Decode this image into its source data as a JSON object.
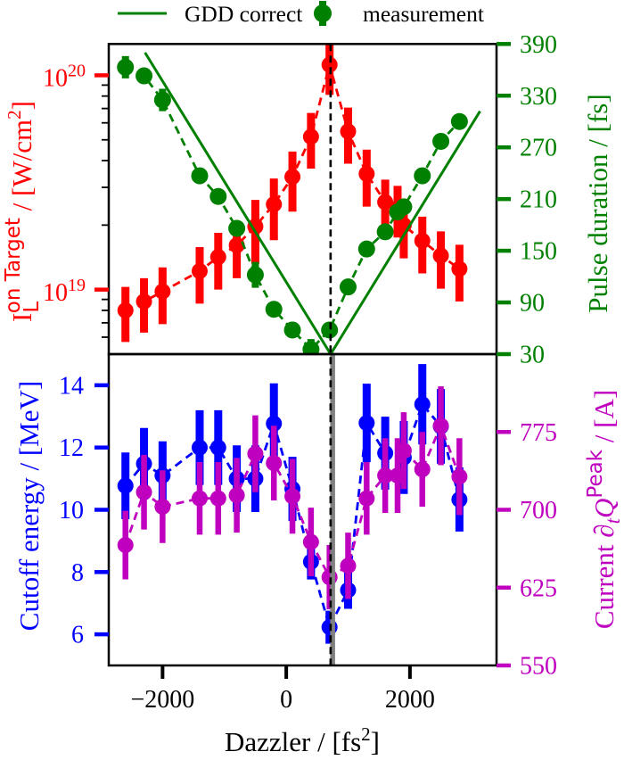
{
  "chart_data": {
    "type": "scatter",
    "title": "",
    "grid": false,
    "xlabel": {
      "text": "Dazzler / [fs",
      "sup": "2",
      "end": "]"
    },
    "xlim": [
      -2870,
      3400
    ],
    "xticks": [
      -2000,
      0,
      2000
    ],
    "xtick_labels": [
      "−2000",
      "0",
      "2000"
    ],
    "legend": {
      "placement": "top-center (above plot, no frame)",
      "entries": [
        {
          "label": "GDD correct",
          "marker": "solid-line",
          "color": "#008000"
        },
        {
          "label": "measurement",
          "marker": "errorbar-circle",
          "color": "#008000"
        }
      ]
    },
    "reference_lines": [
      {
        "orientation": "vertical",
        "x": 750,
        "style": "solid",
        "color": "#808080",
        "panels": [
          "bottom"
        ]
      },
      {
        "orientation": "vertical",
        "x": 717,
        "style": "dashed",
        "color": "#000000",
        "panels": [
          "top",
          "bottom"
        ]
      }
    ],
    "panels": [
      {
        "name": "top",
        "left_axis": {
          "label": {
            "symbol": "I",
            "subscript": "L",
            "superscript": "on Target",
            "unit": " / [W/cm",
            "unit_sup": "2",
            "unit_end": "]"
          },
          "scale": "log",
          "ylim": [
            5e+18,
            1.4e+20
          ],
          "ticks": [
            1e+19,
            1e+20
          ],
          "tick_labels": [
            {
              "base": "10",
              "exp": "19"
            },
            {
              "base": "10",
              "exp": "20"
            }
          ],
          "minor_ticks": [
            6e+18,
            7e+18,
            8e+18,
            9e+18,
            2e+19,
            3e+19,
            4e+19,
            5e+19,
            6e+19,
            7e+19,
            8e+19,
            9e+19
          ],
          "color": "#ff0000",
          "minor_tick_color": "#000000"
        },
        "right_axis": {
          "label": {
            "text": "Pulse duration / [fs]"
          },
          "scale": "linear",
          "ylim": [
            30,
            390
          ],
          "ticks": [
            30,
            90,
            150,
            210,
            270,
            330,
            390
          ],
          "tick_labels": [
            "30",
            "90",
            "150",
            "210",
            "270",
            "330",
            "390"
          ],
          "color": "#008000"
        },
        "series": [
          {
            "id": "intensity",
            "name": "Laser intensity on target",
            "axis": "left",
            "kind": "errorbar",
            "line": "dashed",
            "color": "#ff0000",
            "x": [
              -2600,
              -2300,
              -2000,
              -1400,
              -1100,
              -800,
              -500,
              -200,
              100,
              400,
              700,
              1000,
              1300,
              1600,
              1800,
              1900,
              2200,
              2500,
              2800
            ],
            "y": [
              8e+18,
              8.8e+18,
              9.8e+18,
              1.22e+19,
              1.42e+19,
              1.61e+19,
              1.97e+19,
              2.5e+19,
              3.36e+19,
              5.17e+19,
              1.12e+20,
              5.47e+19,
              3.47e+19,
              2.56e+19,
              2.4e+19,
              2e+19,
              1.69e+19,
              1.44e+19,
              1.25e+19
            ],
            "yerr": [
              2.3e+18,
              2.5e+18,
              2.9e+18,
              3.6e+18,
              4.2e+18,
              4.8e+18,
              6.5e+18,
              8e+18,
              1.05e+19,
              1.5e+19,
              3.1e+19,
              1.6e+19,
              1.03e+19,
              7e+18,
              6.5e+18,
              6e+18,
              5e+18,
              4.3e+18,
              3.7e+18
            ]
          },
          {
            "id": "gdd-correct",
            "name": "GDD correct",
            "axis": "right",
            "kind": "line",
            "line": "solid",
            "color": "#008000",
            "x": [
              -2283,
              717,
              3133
            ],
            "y": [
              380,
              30,
              312
            ]
          },
          {
            "id": "pulse-duration",
            "name": "measurement",
            "axis": "right",
            "kind": "errorbar",
            "line": "dashed",
            "color": "#008000",
            "x": [
              -2600,
              -2300,
              -2000,
              -1400,
              -1100,
              -800,
              -500,
              -200,
              100,
              400,
              700,
              1000,
              1300,
              1600,
              1800,
              1900,
              2200,
              2500,
              2800
            ],
            "y": [
              363,
              353,
              325,
              237,
              213,
              176,
              122,
              82,
              58,
              35.5,
              58,
              108,
              152,
              172,
              195,
              201,
              237,
              277,
              300
            ],
            "yerr": [
              13,
              5,
              13,
              5,
              5,
              5,
              15,
              5,
              5,
              12,
              5,
              5,
              5,
              5,
              5,
              5,
              5,
              5,
              5
            ]
          }
        ]
      },
      {
        "name": "bottom",
        "left_axis": {
          "label": {
            "text": "Cutoff energy / [MeV]"
          },
          "scale": "linear",
          "ylim": [
            5,
            15
          ],
          "ticks": [
            6,
            8,
            10,
            12,
            14
          ],
          "tick_labels": [
            "6",
            "8",
            "10",
            "12",
            "14"
          ],
          "color": "#0000ff"
        },
        "right_axis": {
          "label": {
            "prefix": "Current ",
            "partial": "∂",
            "sub": "t",
            "symbol": "Q",
            "sup": "Peak",
            "unit": " / [A]"
          },
          "scale": "linear",
          "ylim": [
            550,
            850
          ],
          "ticks": [
            550,
            625,
            700,
            775
          ],
          "tick_labels": [
            "550",
            "625",
            "700",
            "775"
          ],
          "color": "#bf00bf"
        },
        "series": [
          {
            "id": "cutoff-energy",
            "name": "Cutoff energy",
            "axis": "left",
            "kind": "errorbar",
            "line": "dashed",
            "color": "#0000ff",
            "x": [
              -2600,
              -2300,
              -2000,
              -1400,
              -1100,
              -800,
              -500,
              -200,
              100,
              400,
              700,
              1000,
              1300,
              1600,
              1900,
              2200,
              2500,
              2800
            ],
            "y": [
              10.77,
              11.48,
              11.1,
              12.0,
              12.0,
              11.0,
              11.0,
              12.77,
              10.67,
              8.33,
              6.23,
              7.42,
              12.79,
              11.82,
              11.68,
              13.39,
              12.68,
              10.33
            ],
            "yerr": [
              1.07,
              1.15,
              1.1,
              1.2,
              1.2,
              1.07,
              1.07,
              1.29,
              1.03,
              0.57,
              0.53,
              0.6,
              1.26,
              1.17,
              1.17,
              1.29,
              1.2,
              1.03
            ]
          },
          {
            "id": "peak-current",
            "name": "Peak current",
            "axis": "right",
            "kind": "errorbar",
            "line": "dashed",
            "color": "#bf00bf",
            "x": [
              -2600,
              -2300,
              -2000,
              -1400,
              -1100,
              -800,
              -500,
              -200,
              100,
              400,
              700,
              1000,
              1300,
              1600,
              1800,
              1900,
              2200,
              2500,
              2800
            ],
            "y": [
              666,
              717,
              703,
              711,
              711,
              714,
              754,
              745,
              713,
              669,
              635,
              646,
              711,
              733,
              733,
              757,
              739,
              781,
              732
            ],
            "yerr": [
              33,
              36,
              35,
              35,
              35,
              36,
              37,
              36,
              36,
              33,
              31,
              32,
              35,
              36,
              36,
              37,
              36,
              38,
              37
            ]
          }
        ]
      }
    ]
  }
}
